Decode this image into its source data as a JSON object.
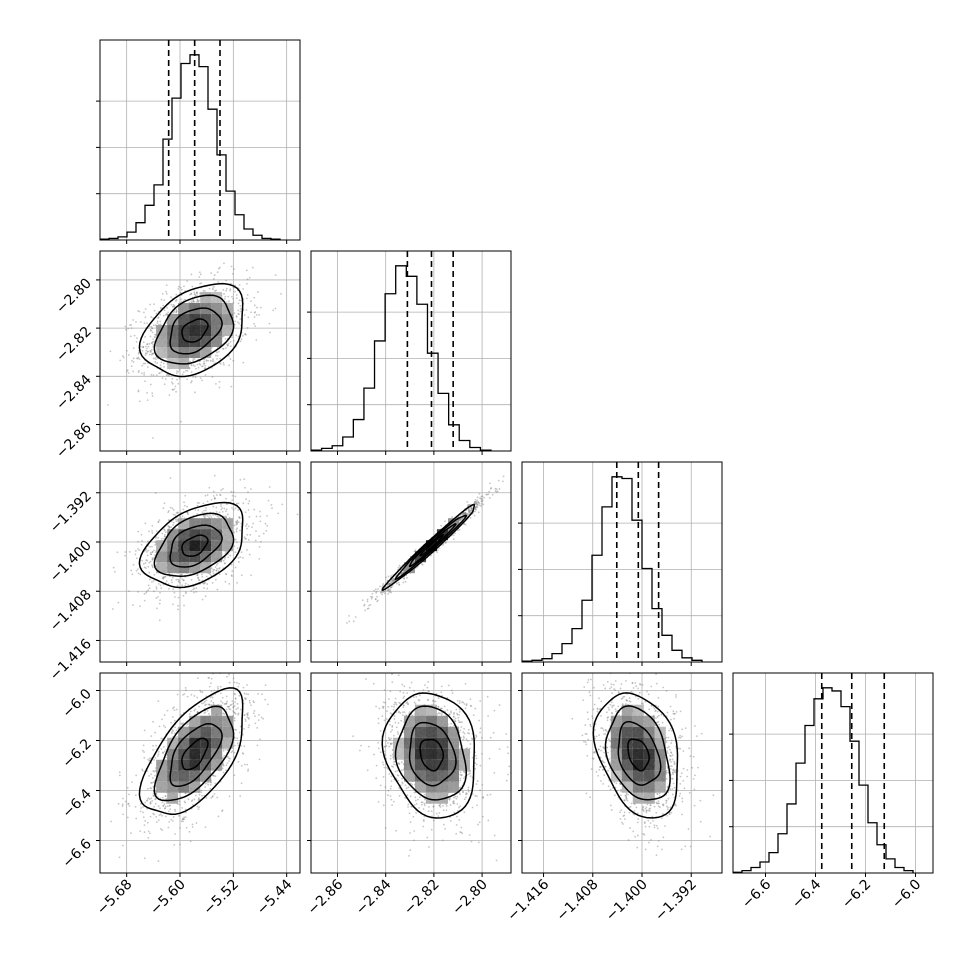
{
  "chart_data": {
    "type": "corner",
    "params": [
      {
        "ticks": [
          -5.68,
          -5.6,
          -5.52,
          -5.44
        ],
        "tick_labels": [
          "−5.68",
          "−5.60",
          "−5.52",
          "−5.44"
        ],
        "range": [
          -5.72,
          -5.42
        ],
        "quantiles": [
          -5.617,
          -5.578,
          -5.54
        ]
      },
      {
        "ticks": [
          -2.86,
          -2.84,
          -2.82,
          -2.8
        ],
        "tick_labels": [
          "−2.86",
          "−2.84",
          "−2.82",
          "−2.80"
        ],
        "range": [
          -2.871,
          -2.788
        ],
        "quantiles": [
          -2.831,
          -2.821,
          -2.812
        ]
      },
      {
        "ticks": [
          -1.416,
          -1.408,
          -1.4,
          -1.392
        ],
        "tick_labels": [
          "−1.416",
          "−1.408",
          "−1.400",
          "−1.392"
        ],
        "range": [
          -1.4195,
          -1.387
        ],
        "quantiles": [
          -1.4041,
          -1.4006,
          -1.3973
        ]
      },
      {
        "ticks": [
          -6.6,
          -6.4,
          -6.2,
          -6.0
        ],
        "tick_labels": [
          "−6.6",
          "−6.4",
          "−6.2",
          "−6.0"
        ],
        "range": [
          -6.73,
          -5.93
        ],
        "quantiles": [
          -6.375,
          -6.255,
          -6.125
        ]
      }
    ],
    "histograms": [
      [
        1,
        2,
        4,
        10,
        22,
        44,
        70,
        128,
        180,
        224,
        235,
        220,
        166,
        108,
        62,
        32,
        14,
        6,
        2,
        1
      ],
      [
        1,
        3,
        6,
        16,
        36,
        72,
        126,
        180,
        212,
        200,
        168,
        112,
        66,
        30,
        12,
        4,
        1
      ],
      [
        1,
        2,
        4,
        10,
        22,
        40,
        74,
        128,
        186,
        222,
        220,
        170,
        112,
        64,
        32,
        14,
        5,
        2
      ],
      [
        1,
        3,
        7,
        14,
        26,
        50,
        88,
        140,
        188,
        222,
        236,
        232,
        212,
        168,
        112,
        64,
        36,
        18,
        7,
        3
      ]
    ],
    "pairs": [
      {
        "row": 1,
        "col": 0,
        "corr": 0.35
      },
      {
        "row": 2,
        "col": 0,
        "corr": 0.4
      },
      {
        "row": 2,
        "col": 1,
        "corr": 0.985
      },
      {
        "row": 3,
        "col": 0,
        "corr": 0.6
      },
      {
        "row": 3,
        "col": 1,
        "corr": -0.15
      },
      {
        "row": 3,
        "col": 2,
        "corr": -0.3
      }
    ],
    "contour_levels_sigma": [
      0.5,
      1.0,
      1.5,
      2.0
    ],
    "grid": true
  }
}
